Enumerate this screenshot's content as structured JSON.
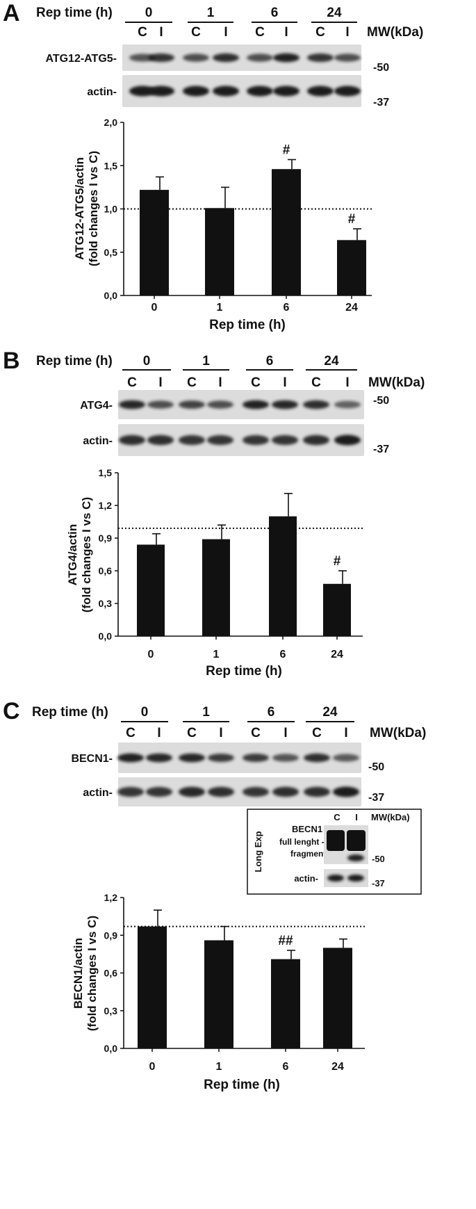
{
  "colors": {
    "bar": "#111111",
    "blot_bg": "#dcdcdc",
    "band": "#1c1c1c"
  },
  "panels": [
    {
      "letter": "A",
      "rep_time_label": "Rep time (h)",
      "timepoints": [
        "0",
        "1",
        "6",
        "24"
      ],
      "lanes": [
        "C",
        "I",
        "C",
        "I",
        "C",
        "I",
        "C",
        "I"
      ],
      "mw_label": "MW(kDa)",
      "blots": [
        {
          "label": "ATG12-ATG5-",
          "mw_marker": "-50",
          "band_intensity": [
            0.55,
            0.8,
            0.6,
            0.85,
            0.6,
            0.95,
            0.8,
            0.6
          ]
        },
        {
          "label": "actin-",
          "mw_marker": "-37",
          "band_intensity": [
            1,
            1,
            1,
            1,
            1,
            1,
            1,
            1
          ]
        }
      ],
      "chart_data": {
        "type": "bar",
        "categories": [
          "0",
          "1",
          "6",
          "24"
        ],
        "values": [
          1.22,
          1.01,
          1.46,
          0.64
        ],
        "errors": [
          0.15,
          0.24,
          0.11,
          0.13
        ],
        "significance": [
          "",
          "",
          "#",
          "#"
        ],
        "reference_line": 1.0,
        "ylim": [
          0,
          2.0
        ],
        "yticks": [
          "0,0",
          "0,5",
          "1,0",
          "1,5",
          "2,0"
        ],
        "ylabel_line1": "ATG12-ATG5/actin",
        "ylabel_line2": "(fold changes I vs C)",
        "xlabel": "Rep time (h)"
      }
    },
    {
      "letter": "B",
      "rep_time_label": "Rep time (h)",
      "timepoints": [
        "0",
        "1",
        "6",
        "24"
      ],
      "lanes": [
        "C",
        "I",
        "C",
        "I",
        "C",
        "I",
        "C",
        "I"
      ],
      "mw_label": "MW(kDa)",
      "blots": [
        {
          "label": "ATG4-",
          "mw_marker": "-50",
          "band_intensity": [
            0.9,
            0.6,
            0.7,
            0.6,
            0.95,
            0.9,
            0.85,
            0.45
          ]
        },
        {
          "label": "actin-",
          "mw_marker": "-37",
          "band_intensity": [
            0.85,
            0.85,
            0.8,
            0.8,
            0.8,
            0.8,
            0.85,
            1
          ]
        }
      ],
      "chart_data": {
        "type": "bar",
        "categories": [
          "0",
          "1",
          "6",
          "24"
        ],
        "values": [
          0.84,
          0.89,
          1.1,
          0.48
        ],
        "errors": [
          0.1,
          0.13,
          0.21,
          0.12
        ],
        "significance": [
          "",
          "",
          "",
          "#"
        ],
        "reference_line": 0.99,
        "ylim": [
          0,
          1.5
        ],
        "yticks": [
          "0,0",
          "0,3",
          "0,6",
          "0,9",
          "1,2",
          "1,5"
        ],
        "ylabel_line1": "ATG4/actin",
        "ylabel_line2": "(fold changes I vs C)",
        "xlabel": "Rep time (h)"
      }
    },
    {
      "letter": "C",
      "rep_time_label": "Rep time (h)",
      "timepoints": [
        "0",
        "1",
        "6",
        "24"
      ],
      "lanes": [
        "C",
        "I",
        "C",
        "I",
        "C",
        "I",
        "C",
        "I"
      ],
      "mw_label": "MW(kDa)",
      "blots": [
        {
          "label": "BECN1-",
          "mw_marker": "-50",
          "band_intensity": [
            0.95,
            0.9,
            0.9,
            0.75,
            0.75,
            0.55,
            0.85,
            0.5
          ]
        },
        {
          "label": "actin-",
          "mw_marker": "-37",
          "band_intensity": [
            0.8,
            0.8,
            0.9,
            0.85,
            0.8,
            0.85,
            0.85,
            1
          ]
        }
      ],
      "inset": {
        "side_label": "Long Exp",
        "protein": "BECN1",
        "full_length_label": "full lenght --",
        "fragment_label": "fragment --",
        "lanes": [
          "C",
          "I"
        ],
        "mw_label": "MW(kDa)",
        "mw_marker_1": "-50",
        "actin_label": "actin-",
        "mw_marker_2": "-37"
      },
      "chart_data": {
        "type": "bar",
        "categories": [
          "0",
          "1",
          "6",
          "24"
        ],
        "values": [
          0.97,
          0.86,
          0.71,
          0.8
        ],
        "errors": [
          0.13,
          0.11,
          0.07,
          0.07
        ],
        "significance": [
          "",
          "",
          "##",
          ""
        ],
        "reference_line": 0.97,
        "ylim": [
          0,
          1.2
        ],
        "yticks": [
          "0,0",
          "0,3",
          "0,6",
          "0,9",
          "1,2"
        ],
        "ylabel_line1": "BECN1/actin",
        "ylabel_line2": "(fold changes I vs C)",
        "xlabel": "Rep time (h)"
      }
    }
  ]
}
